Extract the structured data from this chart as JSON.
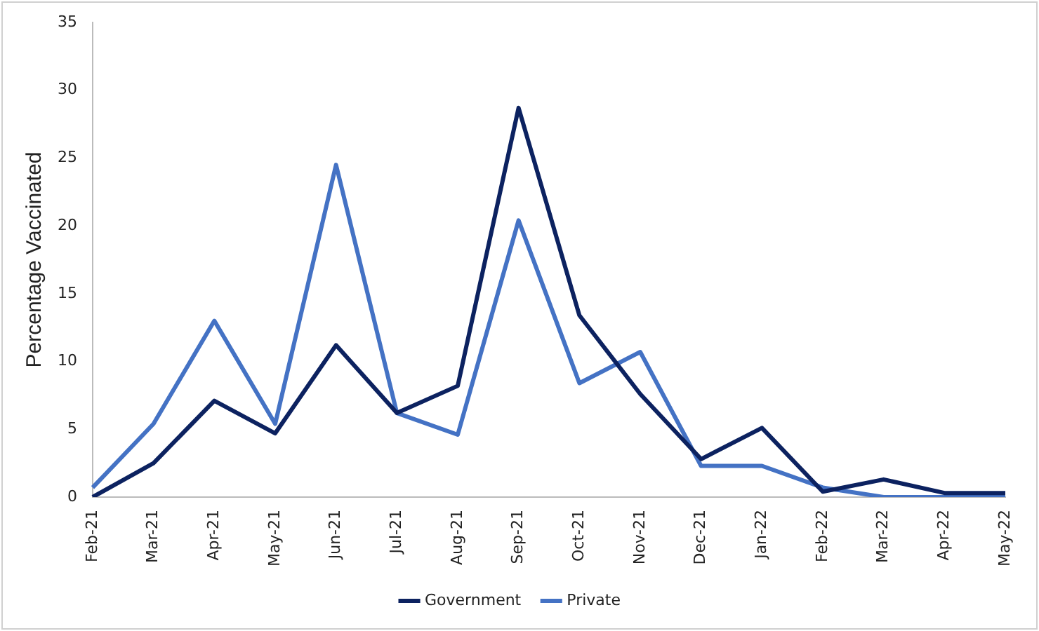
{
  "chart_data": {
    "type": "line",
    "ylabel": "Percentage Vaccinated",
    "categories": [
      "Feb-21",
      "Mar-21",
      "Apr-21",
      "May-21",
      "Jun-21",
      "Jul-21",
      "Aug-21",
      "Sep-21",
      "Oct-21",
      "Nov-21",
      "Dec-21",
      "Jan-22",
      "Feb-22",
      "Mar-22",
      "Apr-22",
      "May-22"
    ],
    "series": [
      {
        "name": "Government",
        "color": "#0c2260",
        "values": [
          0,
          2.5,
          7.1,
          4.7,
          11.2,
          6.2,
          8.2,
          28.7,
          13.4,
          7.6,
          2.8,
          5.1,
          0.4,
          1.3,
          0.3,
          0.3
        ]
      },
      {
        "name": "Private",
        "color": "#4472c4",
        "values": [
          0.7,
          5.4,
          13,
          5.4,
          24.5,
          6.2,
          4.6,
          20.4,
          8.4,
          10.7,
          2.3,
          2.3,
          0.7,
          0,
          0,
          0
        ]
      }
    ],
    "ylim": [
      0,
      35
    ],
    "yticks": [
      0,
      5,
      10,
      15,
      20,
      25,
      30,
      35
    ],
    "grid": false,
    "legend": "bottom",
    "marker": "none",
    "line_style": "solid"
  }
}
